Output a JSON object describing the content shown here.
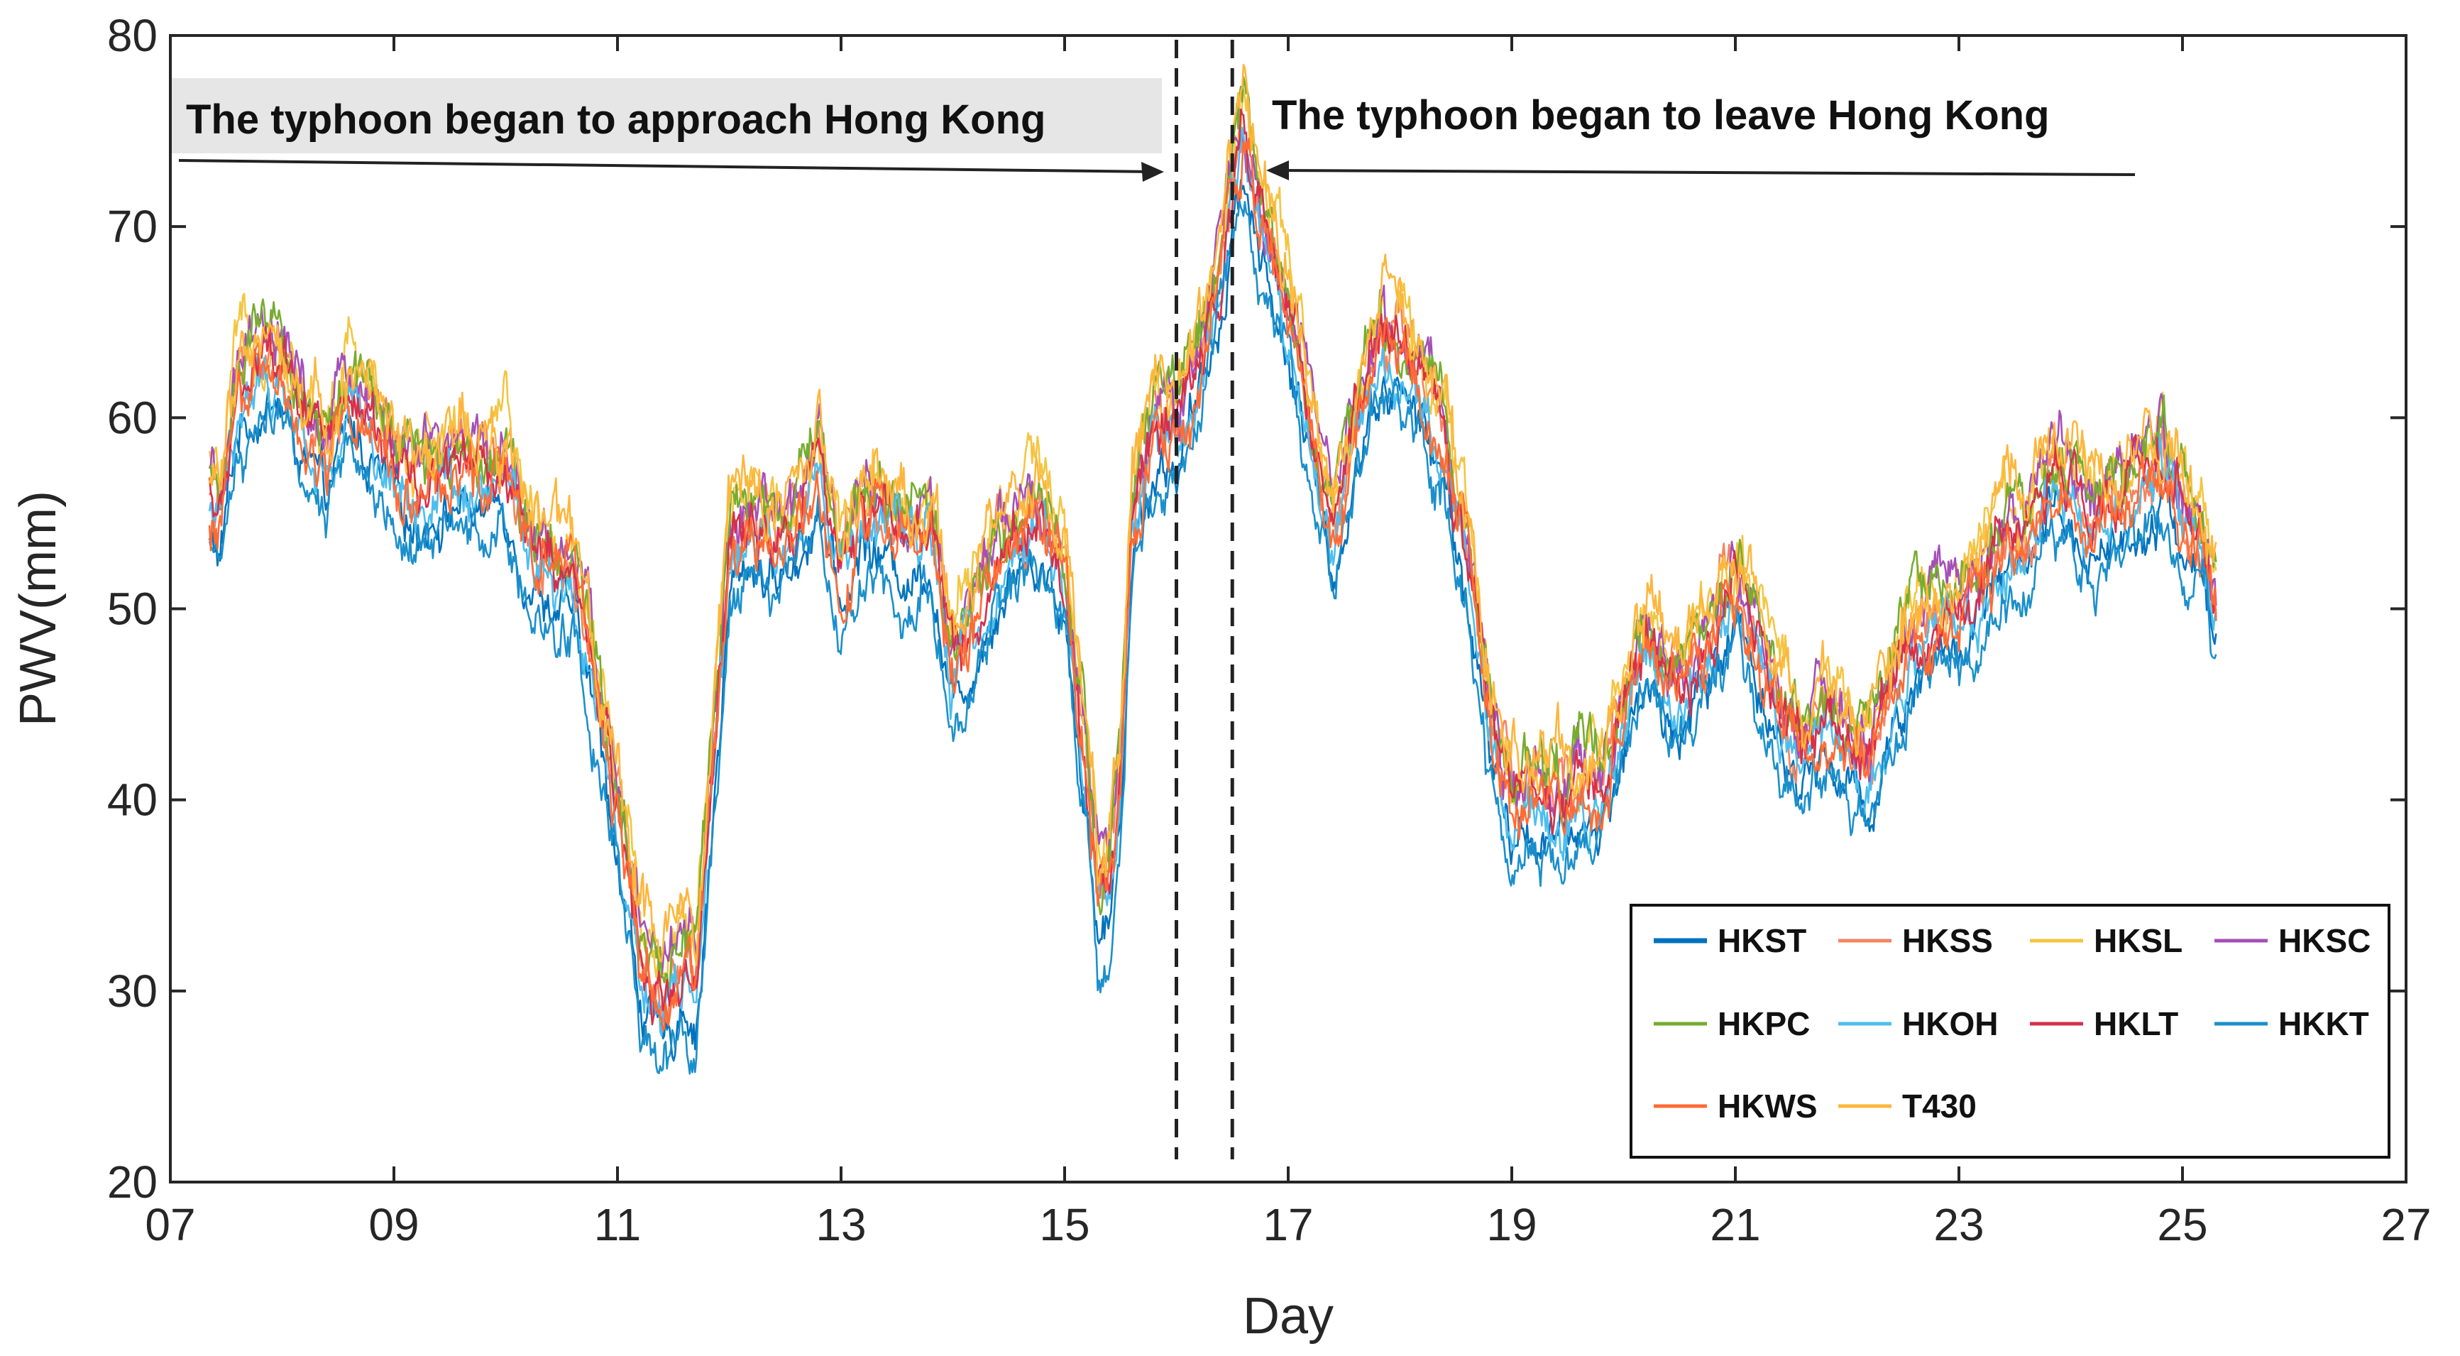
{
  "chart_data": {
    "type": "line",
    "title": "",
    "xlabel": "Day",
    "ylabel": "PWV(mm)",
    "xlim": [
      7,
      27
    ],
    "ylim": [
      20,
      80
    ],
    "x_ticks": [
      "07",
      "09",
      "11",
      "13",
      "15",
      "17",
      "19",
      "21",
      "23",
      "25",
      "27"
    ],
    "y_ticks": [
      "20",
      "30",
      "40",
      "50",
      "60",
      "70",
      "80"
    ],
    "grid": false,
    "legend_position": "bottom-right",
    "annotations": [
      {
        "text": "The typhoon began to approach Hong Kong",
        "x_line": 16.0
      },
      {
        "text": "The typhoon began to leave Hong Kong",
        "x_line": 16.5
      }
    ],
    "base_profile": {
      "x": [
        7.35,
        7.45,
        7.6,
        7.8,
        8.0,
        8.2,
        8.4,
        8.6,
        8.8,
        9.0,
        9.2,
        9.4,
        9.6,
        9.8,
        10.0,
        10.2,
        10.4,
        10.6,
        10.8,
        11.0,
        11.2,
        11.4,
        11.5,
        11.6,
        11.7,
        11.8,
        12.0,
        12.2,
        12.4,
        12.6,
        12.8,
        13.0,
        13.2,
        13.4,
        13.6,
        13.8,
        14.0,
        14.2,
        14.4,
        14.6,
        14.8,
        15.0,
        15.2,
        15.3,
        15.4,
        15.5,
        15.6,
        15.8,
        16.0,
        16.2,
        16.4,
        16.5,
        16.6,
        16.8,
        17.0,
        17.2,
        17.4,
        17.6,
        17.8,
        18.0,
        18.2,
        18.4,
        18.6,
        18.8,
        19.0,
        19.2,
        19.4,
        19.6,
        19.8,
        20.0,
        20.2,
        20.4,
        20.6,
        20.8,
        21.0,
        21.2,
        21.4,
        21.6,
        21.8,
        22.0,
        22.2,
        22.4,
        22.6,
        22.8,
        23.0,
        23.2,
        23.4,
        23.6,
        23.8,
        24.0,
        24.2,
        24.4,
        24.6,
        24.8,
        25.0,
        25.2,
        25.3
      ],
      "y": [
        56,
        55,
        62,
        63,
        63,
        60,
        58,
        62,
        60,
        58,
        57,
        57.5,
        58,
        57.5,
        58,
        54,
        53,
        52,
        47,
        40,
        33,
        30,
        31,
        33,
        31,
        38,
        53,
        55,
        54,
        55,
        58,
        52,
        56,
        55,
        54,
        55,
        47,
        50,
        53,
        55,
        55,
        52,
        42,
        35,
        36,
        42,
        55,
        60,
        60,
        63,
        68,
        73,
        75,
        70,
        66,
        60,
        54,
        60,
        64,
        64,
        62,
        59,
        53,
        45,
        40,
        41,
        40,
        41,
        41,
        45,
        49,
        46,
        47,
        49,
        52,
        49,
        45,
        43,
        45,
        43,
        42,
        46,
        49,
        50,
        50,
        52,
        54,
        54,
        57,
        57,
        55,
        56,
        57,
        58,
        56,
        54,
        50
      ]
    },
    "series": [
      {
        "name": "HKST",
        "color": "#0072BD",
        "offset": -2.5,
        "noise": 1.0
      },
      {
        "name": "HKSS",
        "color": "#F4845F",
        "offset": 0.0,
        "noise": 1.2
      },
      {
        "name": "HKSL",
        "color": "#F4C542",
        "offset": 1.3,
        "noise": 1.3
      },
      {
        "name": "HKSC",
        "color": "#A54FB8",
        "offset": 0.6,
        "noise": 1.2
      },
      {
        "name": "HKPC",
        "color": "#77AC30",
        "offset": 0.9,
        "noise": 1.2
      },
      {
        "name": "HKOH",
        "color": "#4DBEEE",
        "offset": -1.3,
        "noise": 1.1
      },
      {
        "name": "HKLT",
        "color": "#D6304A",
        "offset": -0.4,
        "noise": 1.1
      },
      {
        "name": "HKKT",
        "color": "#1B8FCB",
        "offset": -3.5,
        "noise": 1.0
      },
      {
        "name": "HKWS",
        "color": "#FF6B35",
        "offset": -0.8,
        "noise": 1.2
      },
      {
        "name": "T430",
        "color": "#FDB63C",
        "offset": 1.6,
        "noise": 1.3
      }
    ]
  }
}
